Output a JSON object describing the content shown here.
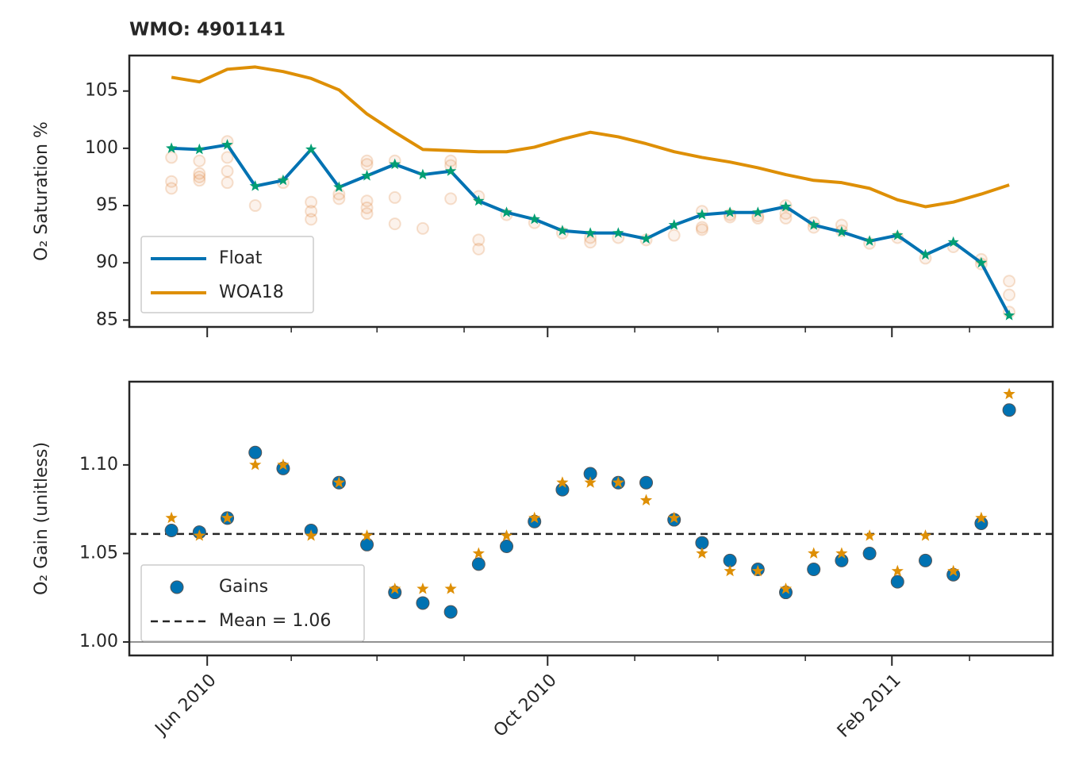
{
  "chart_data": [
    {
      "type": "line",
      "title": "WMO: 4901141",
      "ylabel": "O₂ Saturation %",
      "ylim": [
        84.4,
        108.1
      ],
      "yticks": [
        85,
        90,
        95,
        100,
        105
      ],
      "xlim": [
        -1.51,
        31.56
      ],
      "legend": "lower left",
      "series": [
        {
          "name": "Float",
          "color": "#0072b2",
          "marker_color": "#029e73",
          "values": [
            100.0,
            99.9,
            100.3,
            96.7,
            97.2,
            99.9,
            96.6,
            97.6,
            98.6,
            97.7,
            98.0,
            95.4,
            94.4,
            93.8,
            92.8,
            92.6,
            92.6,
            92.1,
            93.3,
            94.2,
            94.4,
            94.4,
            94.9,
            93.3,
            92.7,
            91.9,
            92.4,
            90.7,
            91.8,
            90.0,
            85.4
          ]
        },
        {
          "name": "WOA18",
          "color": "#de8f05",
          "values": [
            106.2,
            105.8,
            106.9,
            107.1,
            106.7,
            106.1,
            105.1,
            103.0,
            101.4,
            99.9,
            99.8,
            99.7,
            99.7,
            100.1,
            100.8,
            101.4,
            101.0,
            100.4,
            99.7,
            99.2,
            98.8,
            98.3,
            97.7,
            97.2,
            97.0,
            96.5,
            95.5,
            94.9,
            95.3,
            96.0,
            96.8
          ]
        }
      ],
      "samples_color": "#d55e00",
      "samples": [
        [
          96.5,
          97.1,
          99.2
        ],
        [
          97.2,
          97.5,
          97.8,
          98.9
        ],
        [
          97.0,
          98.0,
          99.2,
          100.6
        ],
        [
          95.0
        ],
        [
          97.0
        ],
        [
          93.8,
          94.5,
          95.3
        ],
        [
          95.6,
          96.0
        ],
        [
          94.3,
          94.8,
          95.4,
          98.6,
          98.9
        ],
        [
          93.4,
          95.7,
          98.9
        ],
        [
          93.0
        ],
        [
          95.6,
          98.5,
          98.9
        ],
        [
          91.2,
          92.0,
          95.8
        ],
        [
          94.2
        ],
        [
          93.5
        ],
        [
          92.6
        ],
        [
          91.8,
          92.2
        ],
        [
          92.2
        ],
        [
          92.0
        ],
        [
          92.4
        ],
        [
          92.9,
          93.1,
          94.5
        ],
        [
          94.0,
          94.2
        ],
        [
          93.9,
          94.1
        ],
        [
          93.9,
          94.3,
          95.0
        ],
        [
          93.1,
          93.5
        ],
        [
          92.8,
          93.3
        ],
        [
          91.7
        ],
        [
          92.2
        ],
        [
          90.4
        ],
        [
          91.4
        ],
        [
          89.9,
          90.3
        ],
        [
          85.7,
          87.2,
          88.4
        ]
      ]
    },
    {
      "type": "scatter",
      "ylabel": "O₂ Gain (unitless)",
      "ylim": [
        0.9924,
        1.147
      ],
      "yticks": [
        {
          "value": 1,
          "label": "1.00"
        },
        1.05,
        {
          "value": 1.1,
          "label": "1.10"
        }
      ],
      "xlim": [
        -1.51,
        31.56
      ],
      "xticks": [
        {
          "value": 1.28,
          "label": "Jun 2010"
        },
        {
          "value": 13.47,
          "label": "Oct 2010"
        },
        {
          "value": 25.8,
          "label": "Feb 2011"
        }
      ],
      "xminor_ticks": [
        4.29,
        7.36,
        10.48,
        16.59,
        19.57,
        22.7,
        28.58
      ],
      "legend": "lower left",
      "reference_line": 1,
      "mean": 1.061,
      "mean_label": "Mean = 1.06",
      "series": [
        {
          "name": "Gains",
          "color": "#0072b2",
          "values": [
            1.063,
            1.062,
            1.07,
            1.107,
            1.098,
            1.063,
            1.09,
            1.055,
            1.028,
            1.022,
            1.017,
            1.044,
            1.054,
            1.068,
            1.086,
            1.095,
            1.09,
            1.09,
            1.069,
            1.056,
            1.046,
            1.041,
            1.028,
            1.041,
            1.046,
            1.05,
            1.034,
            1.046,
            1.038,
            1.067,
            1.131
          ]
        },
        {
          "color": "#de8f05",
          "values": [
            1.07,
            1.06,
            1.07,
            1.1,
            1.1,
            1.06,
            1.09,
            1.06,
            1.03,
            1.03,
            1.03,
            1.05,
            1.06,
            1.07,
            1.09,
            1.09,
            1.09,
            1.08,
            1.07,
            1.05,
            1.04,
            1.04,
            1.03,
            1.05,
            1.05,
            1.06,
            1.04,
            1.06,
            1.04,
            1.07,
            1.14
          ]
        }
      ]
    }
  ]
}
